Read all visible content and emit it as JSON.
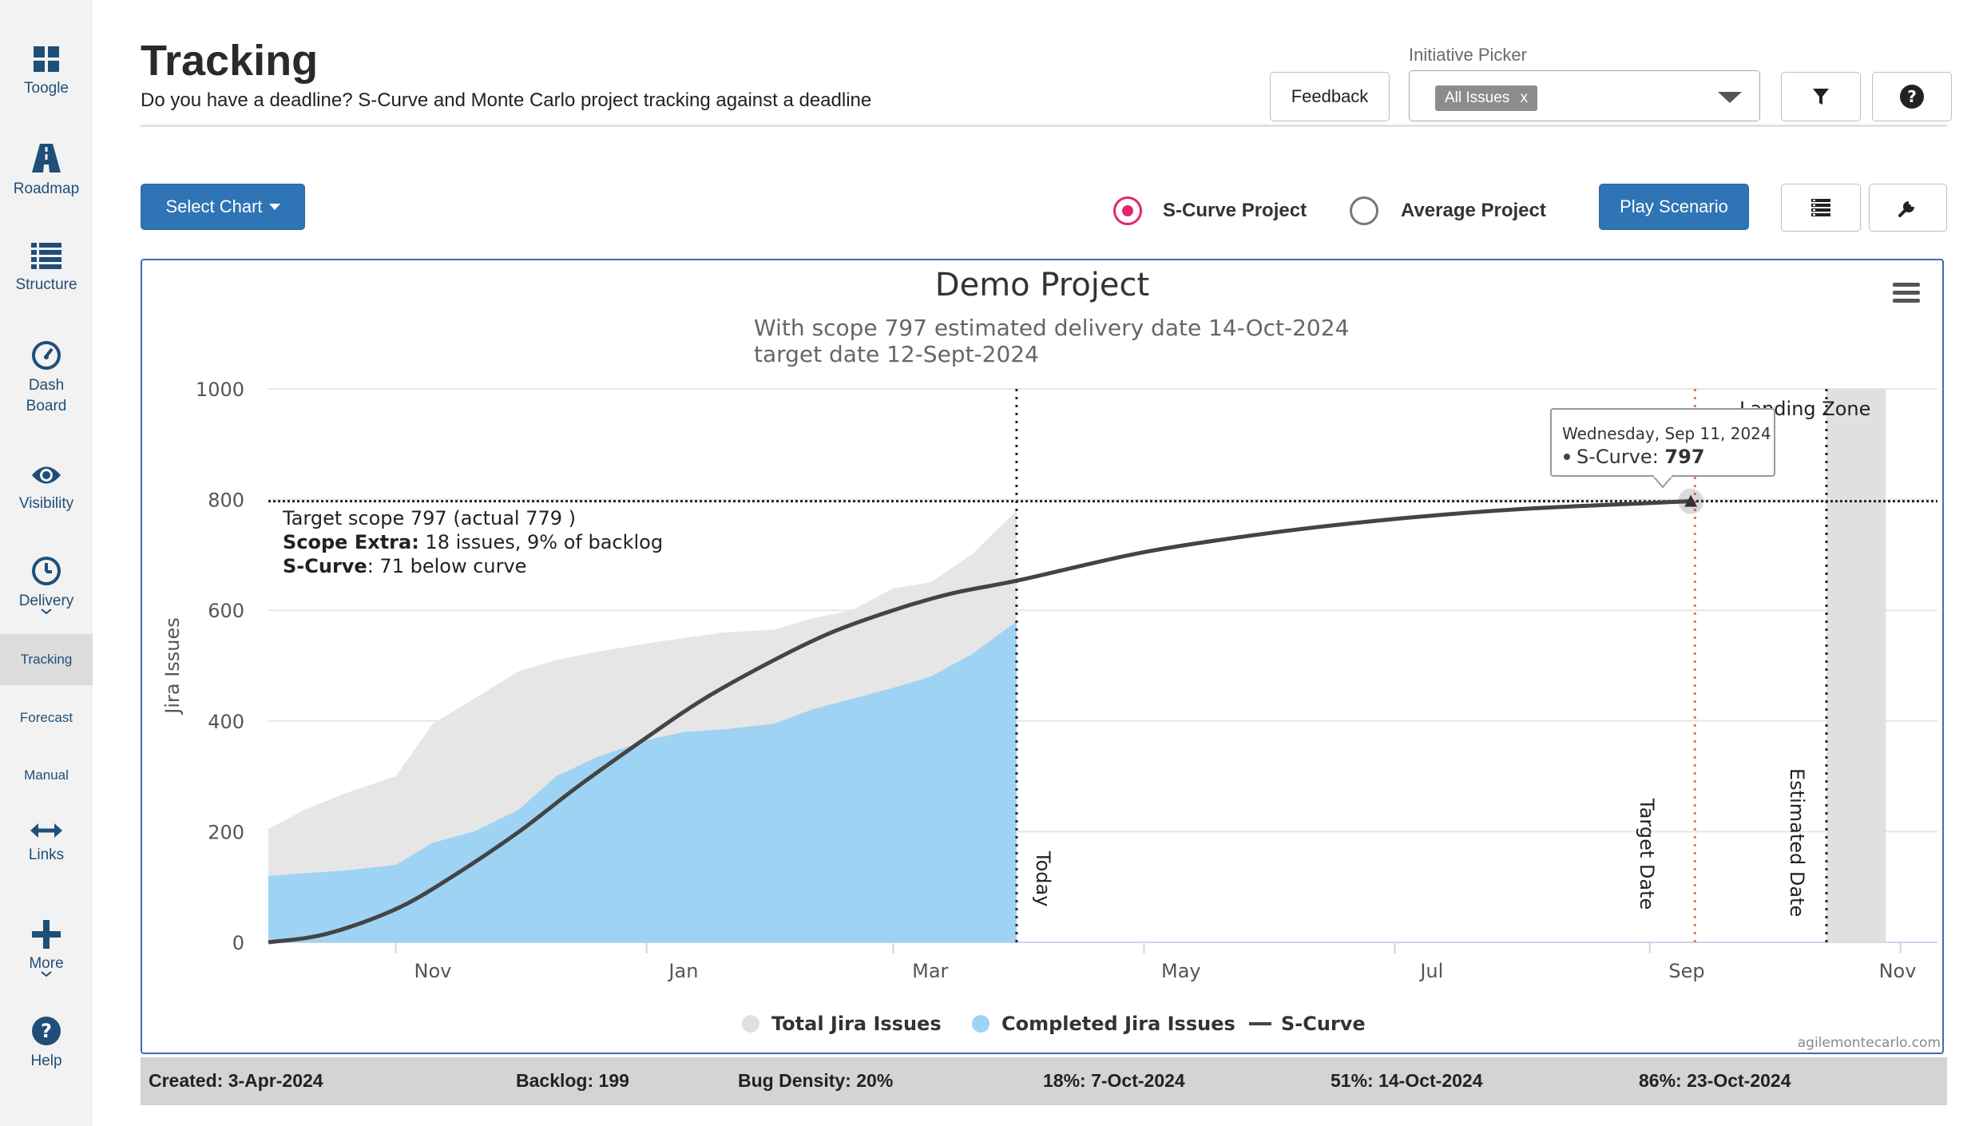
{
  "sidebar": {
    "items": [
      {
        "label": "Toogle",
        "icon": "grid-icon"
      },
      {
        "label": "Roadmap",
        "icon": "road-icon"
      },
      {
        "label": "Structure",
        "icon": "list-icon"
      },
      {
        "label": "Dash",
        "label2": "Board",
        "icon": "gauge-icon"
      },
      {
        "label": "Visibility",
        "icon": "eye-icon"
      },
      {
        "label": "Delivery",
        "icon": "clock-icon"
      },
      {
        "label": "Tracking"
      },
      {
        "label": "Forecast"
      },
      {
        "label": "Manual"
      },
      {
        "label": "Links",
        "icon": "arrows-icon"
      },
      {
        "label": "More",
        "icon": "plus-icon"
      },
      {
        "label": "Help",
        "icon": "help-icon"
      }
    ]
  },
  "header": {
    "title": "Tracking",
    "subtitle": "Do you have a deadline? S-Curve and Monte Carlo project tracking against a deadline",
    "feedback_label": "Feedback",
    "picker_label": "Initiative Picker",
    "picker_chip": "All Issues",
    "picker_chip_remove": "x"
  },
  "controls": {
    "select_chart_label": "Select Chart",
    "radio_scurve_label": "S-Curve Project",
    "radio_average_label": "Average Project",
    "play_label": "Play Scenario"
  },
  "chart": {
    "title": "Demo Project",
    "subtitle_line1": "With scope 797 estimated delivery date 14-Oct-2024",
    "subtitle_line2": "target date 12-Sept-2024",
    "annotation_line1": "Target scope 797 (actual 779 )",
    "annotation_line2_bold": "Scope Extra:",
    "annotation_line2_rest": " 18 issues, 9% of backlog",
    "annotation_line3_bold": "S-Curve",
    "annotation_line3_rest": ": 71 below curve",
    "today_label": "Today",
    "target_label": "Target Date",
    "estimated_label": "Estimated Date",
    "landing_label": "Landing Zone",
    "tooltip_date": "Wednesday, Sep 11, 2024",
    "tooltip_series": "S-Curve: ",
    "tooltip_value": "797",
    "credit": "agilemontecarlo.com"
  },
  "chart_data": {
    "type": "area",
    "title": "Demo Project",
    "ylabel": "Jira Issues",
    "ylim": [
      0,
      1000
    ],
    "yticks": [
      0,
      200,
      400,
      600,
      800,
      1000
    ],
    "xticks": [
      "Nov",
      "Jan",
      "Mar",
      "May",
      "Jul",
      "Sep",
      "Nov"
    ],
    "xlim": [
      "2023-10-01",
      "2024-11-10"
    ],
    "colors": {
      "total": "#e6e6e6",
      "completed": "#9fd3f3",
      "scurve": "#444444",
      "target": "#e8735a"
    },
    "series": [
      {
        "name": "Total Jira Issues",
        "x": [
          "2023-10-01",
          "2023-10-10",
          "2023-10-20",
          "2023-11-01",
          "2023-11-10",
          "2023-11-20",
          "2023-12-01",
          "2023-12-10",
          "2023-12-20",
          "2024-01-01",
          "2024-01-10",
          "2024-01-20",
          "2024-02-01",
          "2024-02-10",
          "2024-02-20",
          "2024-03-01",
          "2024-03-10",
          "2024-03-20",
          "2024-03-31"
        ],
        "values": [
          205,
          240,
          270,
          300,
          395,
          440,
          490,
          510,
          525,
          540,
          550,
          560,
          565,
          585,
          600,
          640,
          650,
          700,
          780
        ]
      },
      {
        "name": "Completed Jira Issues",
        "x": [
          "2023-10-01",
          "2023-10-10",
          "2023-10-20",
          "2023-11-01",
          "2023-11-10",
          "2023-11-20",
          "2023-12-01",
          "2023-12-10",
          "2023-12-20",
          "2024-01-01",
          "2024-01-10",
          "2024-01-20",
          "2024-02-01",
          "2024-02-10",
          "2024-02-20",
          "2024-03-01",
          "2024-03-10",
          "2024-03-20",
          "2024-03-31"
        ],
        "values": [
          120,
          125,
          130,
          140,
          180,
          200,
          240,
          300,
          335,
          365,
          380,
          385,
          395,
          420,
          440,
          460,
          480,
          520,
          580
        ]
      },
      {
        "name": "S-Curve",
        "x": [
          "2023-10-01",
          "2023-10-15",
          "2023-11-01",
          "2023-11-15",
          "2023-12-01",
          "2023-12-15",
          "2024-01-01",
          "2024-01-15",
          "2024-02-01",
          "2024-02-15",
          "2024-03-01",
          "2024-03-15",
          "2024-04-01",
          "2024-05-01",
          "2024-06-01",
          "2024-07-01",
          "2024-08-01",
          "2024-09-11"
        ],
        "values": [
          0,
          15,
          60,
          120,
          200,
          280,
          370,
          440,
          510,
          560,
          600,
          630,
          655,
          705,
          740,
          765,
          783,
          797
        ]
      }
    ],
    "target_scope": 797,
    "markers": {
      "today": "2024-03-31",
      "target_date": "2024-09-12",
      "estimated_date": "2024-10-14",
      "landing_zone": [
        "2024-10-14",
        "2024-10-23"
      ]
    },
    "tooltip": {
      "x": "2024-09-11",
      "y": 797
    },
    "legend": {
      "position": "bottom",
      "entries": [
        "Total Jira Issues",
        "Completed Jira Issues",
        "S-Curve"
      ]
    }
  },
  "footer": {
    "created": "Created: 3-Apr-2024",
    "backlog": "Backlog: 199",
    "bug_density": "Bug Density: 20%",
    "p18": "18%: 7-Oct-2024",
    "p51": "51%: 14-Oct-2024",
    "p86": "86%: 23-Oct-2024"
  }
}
